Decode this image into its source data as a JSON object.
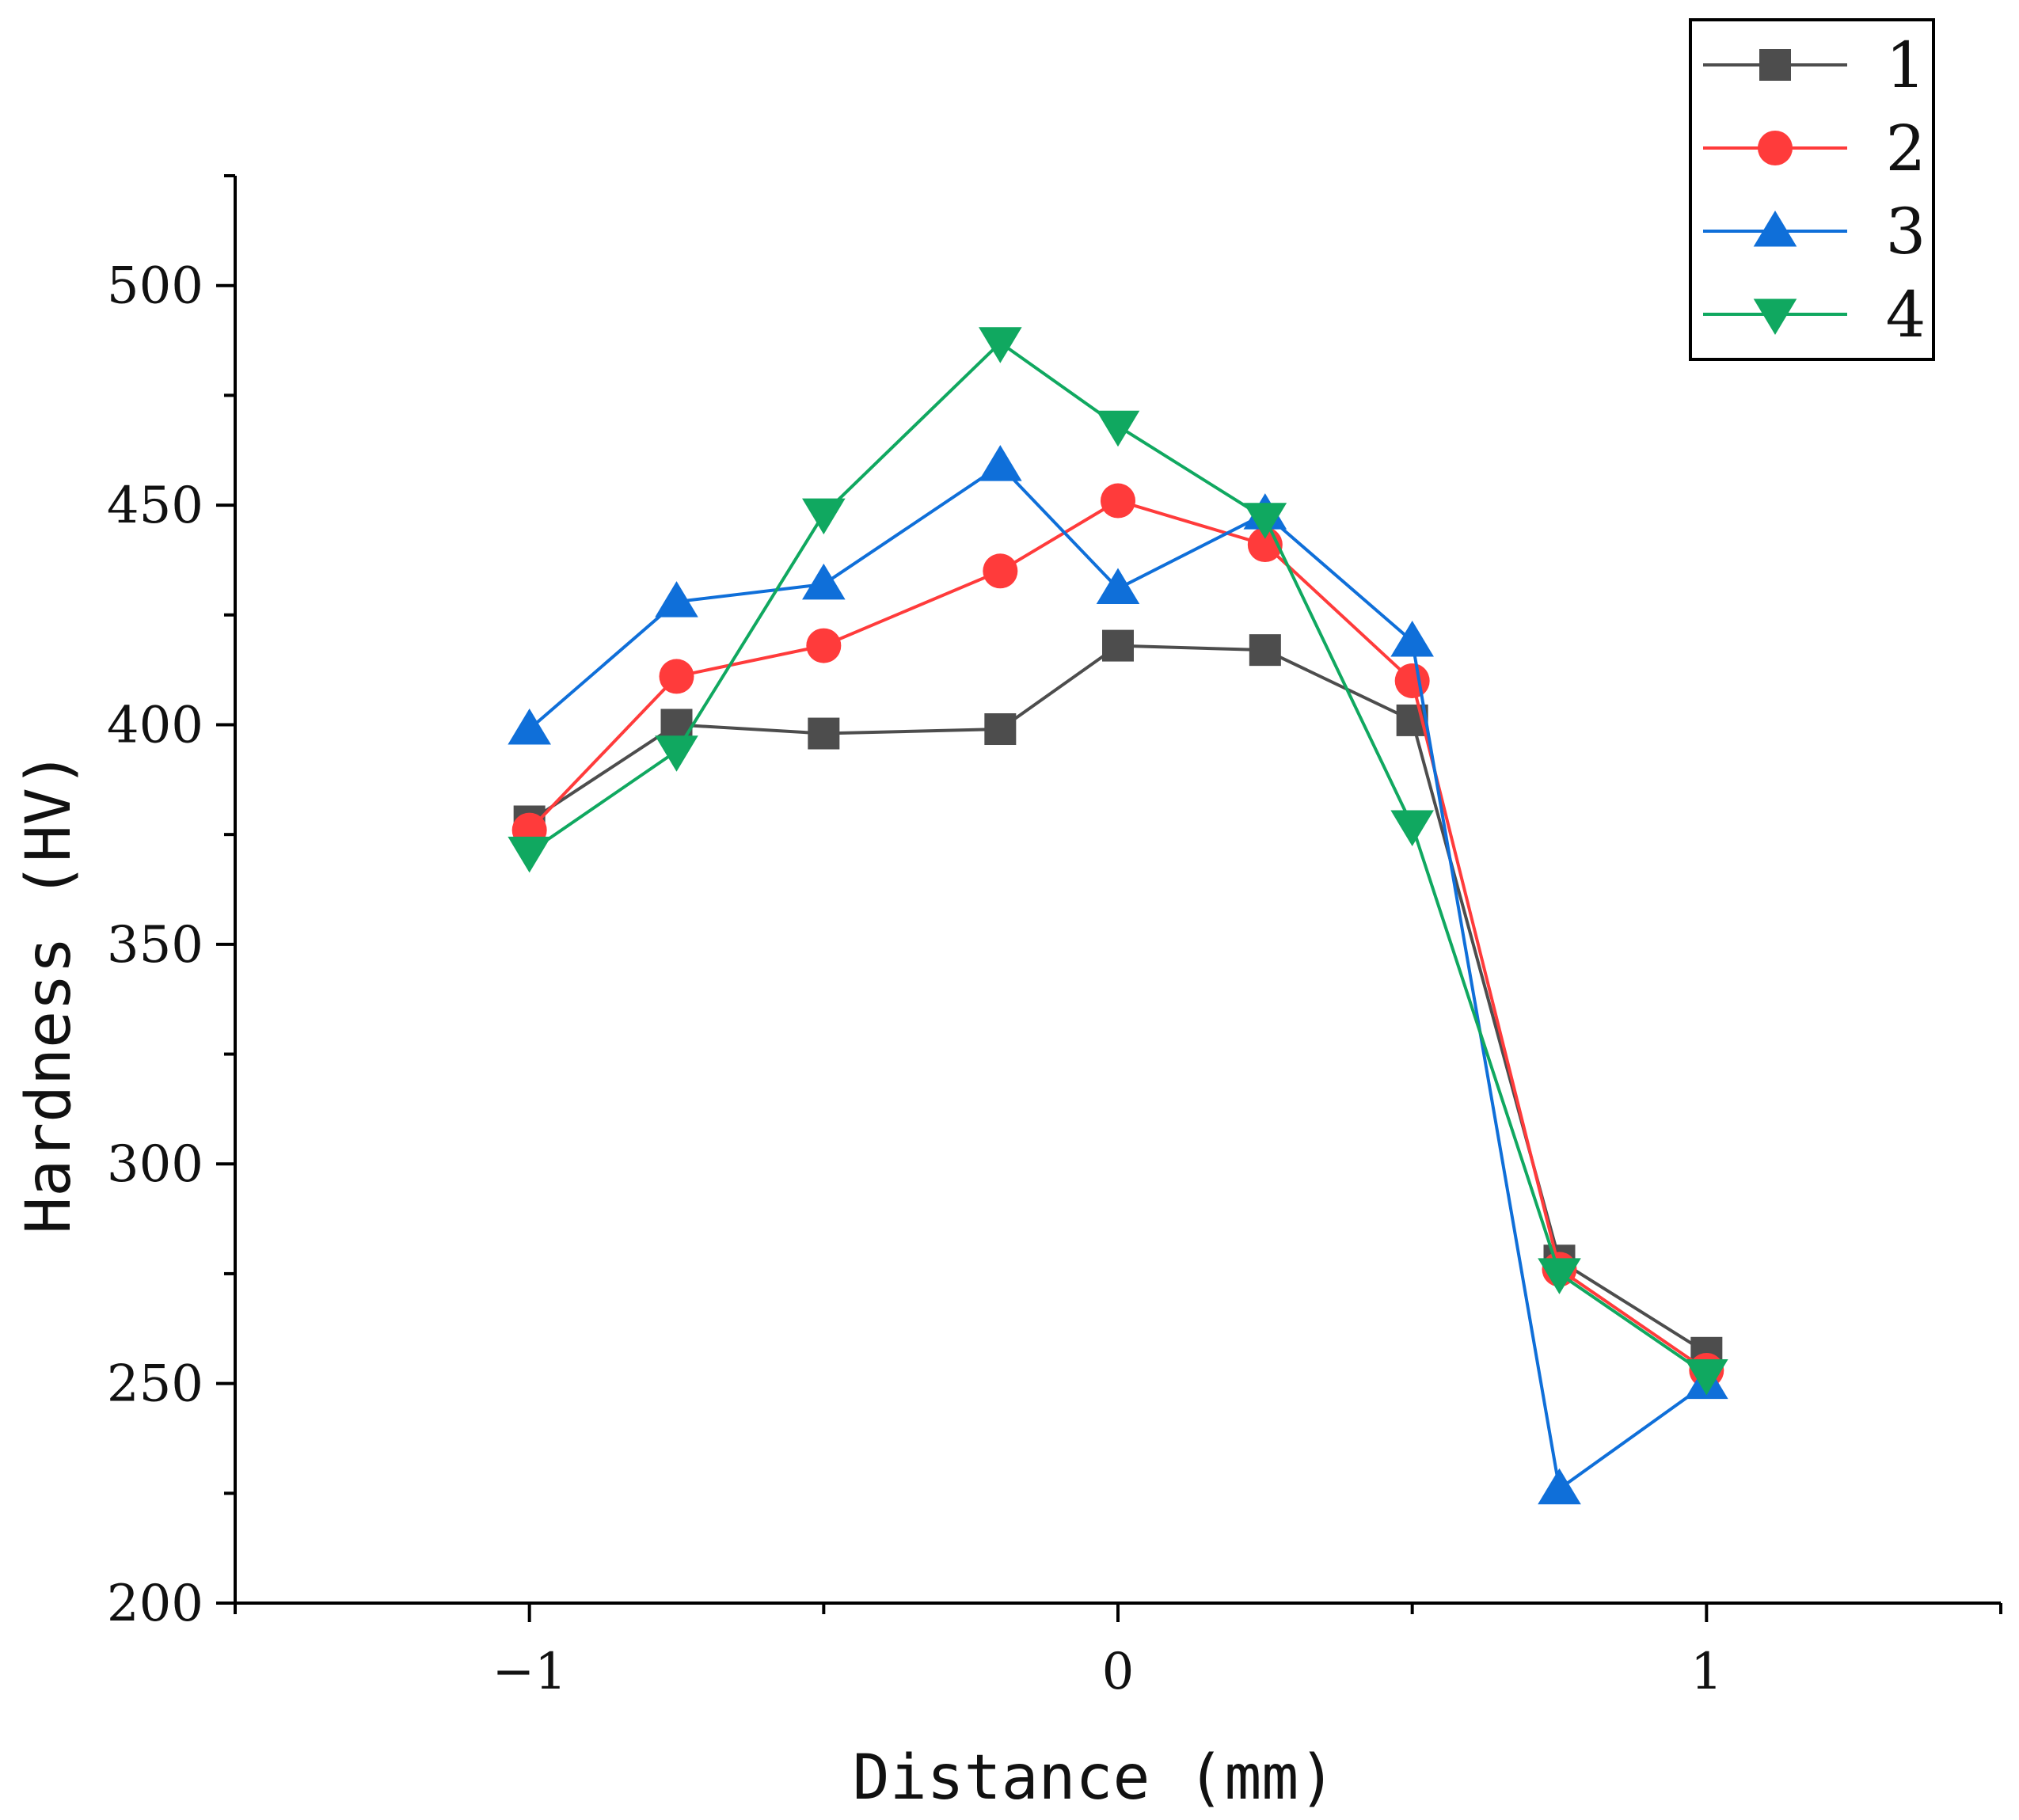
{
  "chart_data": {
    "type": "line",
    "title": "",
    "xlabel": "Distance (mm)",
    "ylabel": "Hardness (HV)",
    "xlim": [
      -1.5,
      1.5
    ],
    "ylim": [
      200,
      525
    ],
    "x_ticks": [
      -1,
      0,
      1
    ],
    "x_tick_labels": [
      "−1",
      "0",
      "1"
    ],
    "y_ticks": [
      200,
      250,
      300,
      350,
      400,
      450,
      500
    ],
    "y_tick_labels": [
      "200",
      "250",
      "300",
      "350",
      "400",
      "450",
      "500"
    ],
    "grid": false,
    "legend_position": "top-right",
    "x": [
      -1,
      -0.75,
      -0.5,
      -0.2,
      0,
      0.25,
      0.5,
      0.75,
      1
    ],
    "series": [
      {
        "name": "1",
        "color": "#4d4d4d",
        "marker": "square",
        "values": [
          378,
          400,
          398,
          399,
          418,
          417,
          401,
          278,
          257
        ]
      },
      {
        "name": "2",
        "color": "#ff3b3b",
        "marker": "circle",
        "values": [
          376,
          411,
          418,
          435,
          451,
          441,
          410,
          276,
          253
        ]
      },
      {
        "name": "3",
        "color": "#0f6fd9",
        "marker": "triangle-up",
        "values": [
          399,
          428,
          432,
          459,
          431,
          448,
          419,
          226,
          250
        ]
      },
      {
        "name": "4",
        "color": "#10a860",
        "marker": "triangle-down",
        "values": [
          371,
          394,
          448,
          487,
          468,
          447,
          377,
          275,
          252
        ]
      }
    ]
  }
}
